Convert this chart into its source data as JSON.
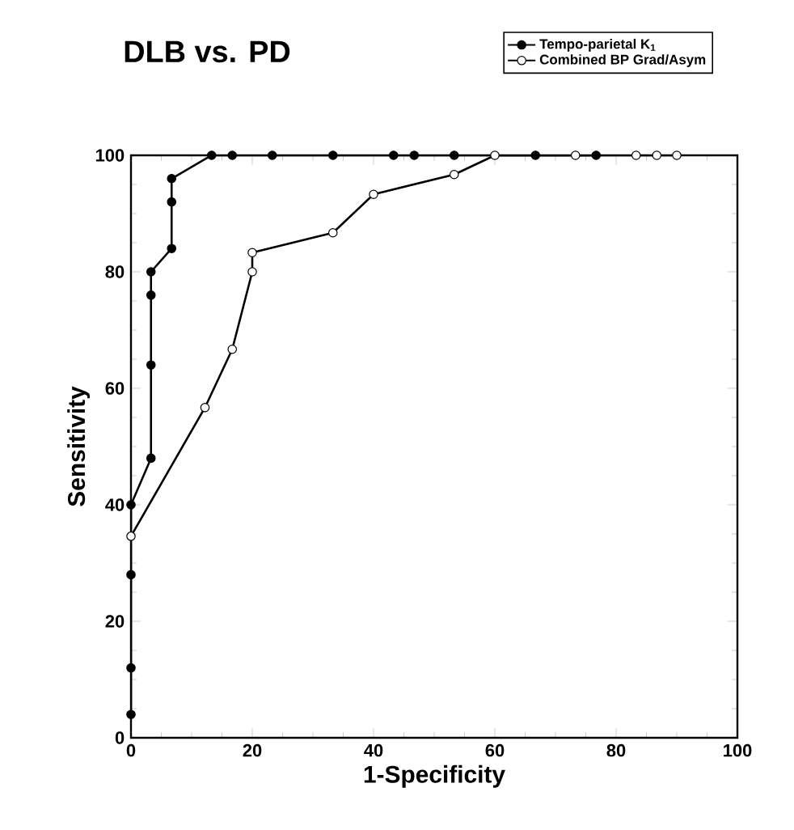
{
  "chart_data": {
    "type": "line",
    "title": "DLB vs. PD",
    "xlabel": "1-Specificity",
    "ylabel": "Sensitivity",
    "xlim": [
      0,
      100
    ],
    "ylim": [
      0,
      100
    ],
    "xticks": [
      0,
      20,
      40,
      60,
      80,
      100
    ],
    "yticks": [
      0,
      20,
      40,
      60,
      80,
      100
    ],
    "grid": false,
    "legend": "top right",
    "marker": "circle",
    "line_style": "solid",
    "series": [
      {
        "name": "Tempo-parietal K$_{1}$",
        "color": "#000000",
        "x": [
          0,
          0,
          0,
          0,
          3.3,
          3.3,
          3.3,
          3.3,
          6.7,
          6.7,
          6.7,
          13.3,
          16.7,
          23.3,
          33.3,
          43.3,
          46.7,
          53.3,
          66.7,
          76.7
        ],
        "values": [
          4,
          12,
          28,
          40,
          48,
          64,
          76,
          80,
          84,
          92,
          96,
          100,
          100,
          100,
          100,
          100,
          100,
          100,
          100,
          100
        ]
      },
      {
        "name": "Combined BP Grad/Asym",
        "color": "#000000",
        "x": [
          0,
          12.2,
          16.7,
          20,
          20,
          33.3,
          40,
          53.3,
          60,
          73.3,
          83.3,
          86.7,
          90
        ],
        "values": [
          34.6,
          56.7,
          66.7,
          80,
          83.3,
          86.7,
          93.3,
          96.7,
          100,
          100,
          100,
          100,
          100
        ]
      }
    ]
  }
}
